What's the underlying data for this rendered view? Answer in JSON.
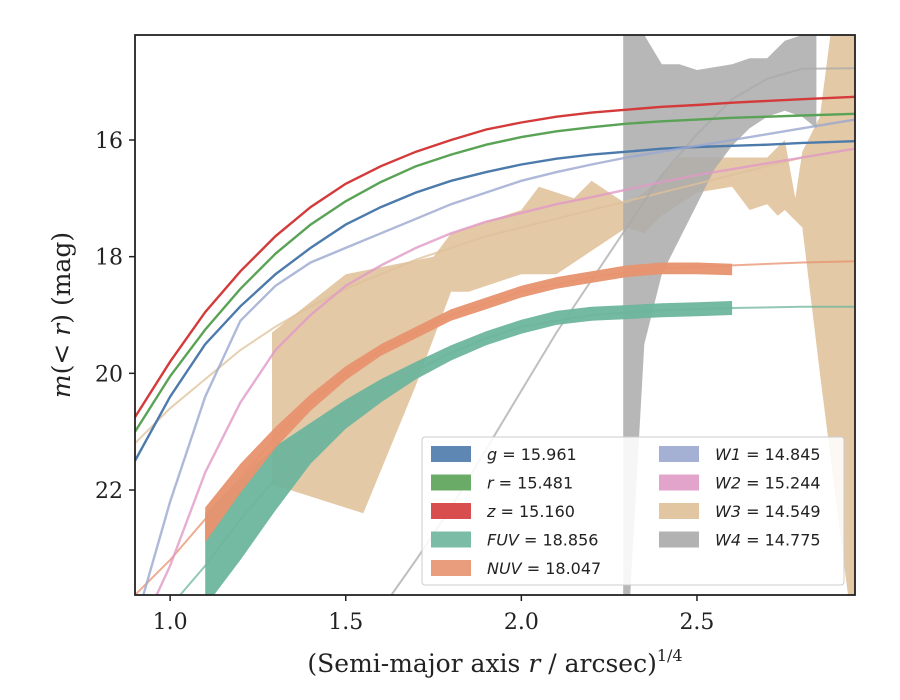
{
  "chart_data": {
    "type": "line",
    "xlabel": "(Semi-major axis r / arcsec)^{1/4}",
    "xlabel_parts": {
      "pre": "(Semi-major axis ",
      "var": "r",
      "post": " / arcsec)",
      "sup": "1/4"
    },
    "ylabel": "m(< r) (mag)",
    "ylabel_parts": {
      "m": "m",
      "open": "(",
      "lt": "< ",
      "r": "r",
      "close": ")",
      "unit": " (mag)"
    },
    "xlim": [
      0.9,
      2.95
    ],
    "ylim": [
      23.8,
      14.2
    ],
    "y_inverted": true,
    "xticks": [
      1.0,
      1.5,
      2.0,
      2.5
    ],
    "xtick_labels": [
      "1.0",
      "1.5",
      "2.0",
      "2.5"
    ],
    "yticks": [
      16,
      18,
      20,
      22
    ],
    "ytick_labels": [
      "16",
      "18",
      "20",
      "22"
    ],
    "grid": false,
    "legend_position": "lower-right",
    "series": [
      {
        "name": "g = 15.961",
        "label_var": "g",
        "label_val": " = 15.961",
        "color": "#4c7aab",
        "kind": "thin",
        "x": [
          0.9,
          1.0,
          1.1,
          1.2,
          1.3,
          1.4,
          1.5,
          1.6,
          1.7,
          1.8,
          1.9,
          2.0,
          2.1,
          2.2,
          2.3,
          2.4,
          2.5,
          2.6,
          2.7,
          2.8,
          2.95
        ],
        "y": [
          21.5,
          20.4,
          19.5,
          18.85,
          18.3,
          17.85,
          17.45,
          17.15,
          16.9,
          16.7,
          16.55,
          16.42,
          16.32,
          16.25,
          16.2,
          16.15,
          16.12,
          16.1,
          16.08,
          16.05,
          16.02
        ]
      },
      {
        "name": "r = 15.481",
        "label_var": "r",
        "label_val": " = 15.481",
        "color": "#5aa356",
        "kind": "thin",
        "x": [
          0.9,
          1.0,
          1.1,
          1.2,
          1.3,
          1.4,
          1.5,
          1.6,
          1.7,
          1.8,
          1.9,
          2.0,
          2.1,
          2.2,
          2.3,
          2.4,
          2.5,
          2.6,
          2.7,
          2.8,
          2.95
        ],
        "y": [
          21.0,
          20.05,
          19.25,
          18.55,
          17.95,
          17.45,
          17.05,
          16.72,
          16.45,
          16.25,
          16.08,
          15.95,
          15.85,
          15.78,
          15.72,
          15.68,
          15.65,
          15.62,
          15.6,
          15.58,
          15.55
        ]
      },
      {
        "name": "z = 15.160",
        "label_var": "z",
        "label_val": " = 15.160",
        "color": "#d43a3a",
        "kind": "thin",
        "x": [
          0.9,
          1.0,
          1.1,
          1.2,
          1.3,
          1.4,
          1.5,
          1.6,
          1.7,
          1.8,
          1.9,
          2.0,
          2.1,
          2.2,
          2.3,
          2.4,
          2.5,
          2.6,
          2.7,
          2.8,
          2.95
        ],
        "y": [
          20.75,
          19.8,
          18.95,
          18.25,
          17.65,
          17.15,
          16.75,
          16.45,
          16.2,
          16.0,
          15.82,
          15.7,
          15.6,
          15.53,
          15.48,
          15.43,
          15.4,
          15.36,
          15.33,
          15.3,
          15.26
        ]
      },
      {
        "name": "FUV = 18.856",
        "label_var": "FUV",
        "label_val": " = 18.856",
        "color": "#6db59c",
        "kind": "band",
        "x": [
          1.1,
          1.2,
          1.3,
          1.4,
          1.5,
          1.6,
          1.7,
          1.8,
          1.9,
          2.0,
          2.1,
          2.2,
          2.3,
          2.4,
          2.5,
          2.6
        ],
        "y": [
          23.2,
          22.5,
          21.8,
          21.2,
          20.7,
          20.3,
          19.95,
          19.65,
          19.4,
          19.2,
          19.05,
          18.98,
          18.95,
          18.92,
          18.9,
          18.88
        ],
        "halfwidth": [
          0.8,
          0.7,
          0.55,
          0.35,
          0.25,
          0.2,
          0.15,
          0.13,
          0.12,
          0.12,
          0.12,
          0.12,
          0.12,
          0.12,
          0.12,
          0.12
        ],
        "model_x": [
          0.9,
          1.0,
          1.1,
          1.2,
          1.3,
          1.4,
          1.5,
          1.6,
          1.7,
          1.8,
          1.9,
          2.0,
          2.2,
          2.4,
          2.6,
          2.8,
          2.95
        ],
        "model_y": [
          24.6,
          24.0,
          23.3,
          22.5,
          21.8,
          21.2,
          20.7,
          20.3,
          19.95,
          19.65,
          19.4,
          19.2,
          19.0,
          18.92,
          18.88,
          18.86,
          18.86
        ]
      },
      {
        "name": "NUV = 18.047",
        "label_var": "NUV",
        "label_val": " = 18.047",
        "color": "#e8926e",
        "kind": "band",
        "x": [
          1.1,
          1.2,
          1.3,
          1.4,
          1.5,
          1.6,
          1.7,
          1.8,
          1.9,
          2.0,
          2.1,
          2.2,
          2.3,
          2.4,
          2.5,
          2.6
        ],
        "y": [
          22.6,
          21.8,
          21.1,
          20.5,
          20.0,
          19.6,
          19.3,
          19.0,
          18.8,
          18.6,
          18.45,
          18.35,
          18.25,
          18.2,
          18.2,
          18.22
        ],
        "halfwidth": [
          0.3,
          0.25,
          0.18,
          0.14,
          0.12,
          0.1,
          0.1,
          0.1,
          0.1,
          0.1,
          0.1,
          0.1,
          0.1,
          0.1,
          0.1,
          0.1
        ],
        "model_x": [
          0.9,
          1.0,
          1.1,
          1.2,
          1.3,
          1.4,
          1.5,
          1.6,
          1.7,
          1.8,
          1.9,
          2.0,
          2.2,
          2.4,
          2.6,
          2.8,
          2.95
        ],
        "model_y": [
          23.8,
          23.2,
          22.5,
          21.8,
          21.1,
          20.5,
          20.0,
          19.6,
          19.3,
          19.0,
          18.8,
          18.6,
          18.35,
          18.2,
          18.15,
          18.1,
          18.08
        ]
      },
      {
        "name": "W1 = 14.845",
        "label_var": "W1",
        "label_val": " = 14.845",
        "color": "#9aa8cf",
        "kind": "thin",
        "x": [
          0.9,
          1.0,
          1.1,
          1.2,
          1.3,
          1.4,
          1.5,
          1.6,
          1.7,
          1.8,
          1.9,
          2.0,
          2.1,
          2.2,
          2.3,
          2.4,
          2.5,
          2.6,
          2.7,
          2.8,
          2.95
        ],
        "y": [
          24.3,
          22.2,
          20.4,
          19.1,
          18.5,
          18.1,
          17.85,
          17.6,
          17.35,
          17.1,
          16.9,
          16.7,
          16.55,
          16.42,
          16.3,
          16.2,
          16.1,
          16.0,
          15.9,
          15.8,
          15.65
        ]
      },
      {
        "name": "W2 = 15.244",
        "label_var": "W2",
        "label_val": " = 15.244",
        "color": "#e09ac6",
        "kind": "thin",
        "x": [
          0.9,
          1.0,
          1.1,
          1.2,
          1.3,
          1.4,
          1.5,
          1.6,
          1.7,
          1.8,
          1.9,
          2.0,
          2.1,
          2.2,
          2.3,
          2.4,
          2.5,
          2.6,
          2.7,
          2.8,
          2.95
        ],
        "y": [
          24.6,
          23.3,
          21.7,
          20.5,
          19.6,
          19.0,
          18.5,
          18.15,
          17.85,
          17.6,
          17.4,
          17.25,
          17.1,
          16.98,
          16.85,
          16.72,
          16.6,
          16.5,
          16.4,
          16.3,
          16.15
        ]
      },
      {
        "name": "W3 = 14.549",
        "label_var": "W3",
        "label_val": " = 14.549",
        "color": "#dfc098",
        "kind": "wide",
        "upper_x": [
          1.29,
          1.5,
          1.75,
          1.8,
          2.0,
          2.05,
          2.15,
          2.2,
          2.3,
          2.35,
          2.45,
          2.6,
          2.7,
          2.75,
          2.78,
          2.8,
          2.85,
          2.88,
          2.95
        ],
        "upper_y": [
          19.3,
          18.3,
          18.0,
          17.6,
          17.2,
          16.8,
          17.0,
          16.7,
          17.1,
          16.9,
          16.3,
          16.3,
          16.3,
          16.0,
          17.0,
          16.2,
          15.6,
          14.2,
          14.2
        ],
        "lower_x": [
          2.95,
          2.93,
          2.85,
          2.8,
          2.75,
          2.73,
          2.7,
          2.65,
          2.6,
          2.5,
          2.4,
          2.35,
          2.3,
          2.2,
          2.1,
          2.0,
          1.85,
          1.8,
          1.7,
          1.55,
          1.29
        ],
        "lower_y": [
          23.8,
          23.8,
          20.0,
          17.5,
          17.2,
          17.3,
          17.1,
          17.2,
          16.8,
          16.9,
          17.3,
          17.6,
          17.5,
          17.9,
          18.3,
          18.3,
          18.6,
          18.6,
          20.2,
          22.4,
          21.9
        ],
        "model_x": [
          0.9,
          1.0,
          1.1,
          1.2,
          1.3,
          1.4,
          1.5,
          1.6,
          1.7,
          1.8,
          1.9,
          2.0,
          2.1,
          2.2,
          2.3,
          2.4,
          2.5,
          2.6,
          2.7,
          2.8,
          2.95
        ],
        "model_y": [
          21.2,
          20.6,
          20.1,
          19.6,
          19.2,
          18.85,
          18.55,
          18.3,
          18.05,
          17.85,
          17.65,
          17.5,
          17.35,
          17.2,
          17.05,
          16.9,
          16.75,
          16.6,
          16.45,
          16.3,
          16.15
        ]
      },
      {
        "name": "W4 = 14.775",
        "label_var": "W4",
        "label_val": " = 14.775",
        "color": "#aaaaaa",
        "kind": "wide",
        "upper_x": [
          2.29,
          2.35,
          2.4,
          2.45,
          2.5,
          2.6,
          2.65,
          2.7,
          2.75,
          2.8,
          2.84
        ],
        "upper_y": [
          14.2,
          14.2,
          14.7,
          14.7,
          14.8,
          14.7,
          14.6,
          14.6,
          14.3,
          14.2,
          14.2
        ],
        "lower_x": [
          2.84,
          2.8,
          2.75,
          2.7,
          2.65,
          2.6,
          2.55,
          2.5,
          2.45,
          2.4,
          2.35,
          2.31,
          2.29
        ],
        "lower_y": [
          15.8,
          15.6,
          15.5,
          15.6,
          15.8,
          16.1,
          16.5,
          17.1,
          17.7,
          18.3,
          19.5,
          23.8,
          23.8
        ],
        "model_x": [
          1.63,
          1.7,
          1.8,
          1.9,
          2.0,
          2.1,
          2.2,
          2.3,
          2.4,
          2.5,
          2.6,
          2.7,
          2.8,
          2.95
        ],
        "model_y": [
          23.8,
          23.2,
          22.3,
          21.3,
          20.3,
          19.3,
          18.4,
          17.5,
          16.6,
          15.9,
          15.3,
          14.95,
          14.78,
          14.77
        ]
      }
    ]
  }
}
